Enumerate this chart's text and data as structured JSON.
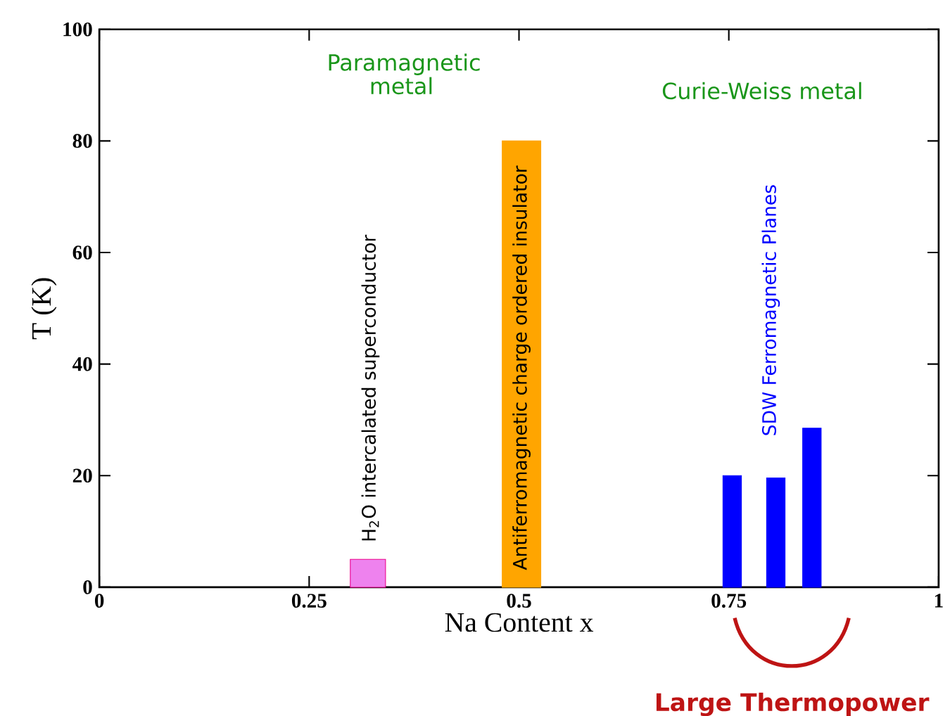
{
  "chart_data": {
    "type": "bar",
    "xlabel": "Na Content x",
    "ylabel": "T (K)",
    "xlim": [
      0,
      1
    ],
    "xticks": [
      0,
      0.25,
      0.5,
      0.75,
      1
    ],
    "ylim": [
      0,
      100
    ],
    "yticks": [
      0,
      20,
      40,
      60,
      80,
      100
    ],
    "series": [
      {
        "color": "#ee82ee",
        "x": [
          0.32
        ],
        "values": [
          5
        ]
      },
      {
        "color": "#ffa500",
        "x": [
          0.503
        ],
        "values": [
          80
        ]
      },
      {
        "color": "#0000ff",
        "x": [
          0.754,
          0.806,
          0.849
        ],
        "values": [
          20,
          19.6,
          28.5
        ]
      }
    ],
    "annotations": [
      "H$_{2}$O intercalated superconductor",
      "Antiferromagnetic charge ordered insulator",
      "SDW Ferromagnetic Planes",
      "Paramagnetic metal",
      "Curie-Weiss metal",
      "Large Thermopower"
    ]
  }
}
